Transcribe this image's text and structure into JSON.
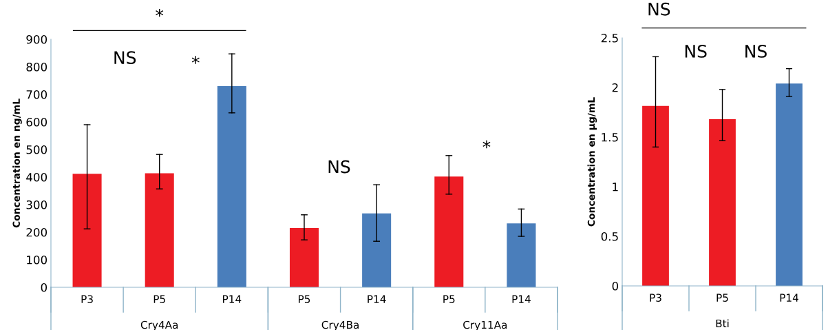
{
  "chart_data": [
    {
      "type": "bar",
      "ylabel": "Concentration en ng/mL",
      "categories": [
        "P3",
        "P5",
        "P14",
        "P5",
        "P14",
        "P5",
        "P14"
      ],
      "values": [
        412,
        414,
        730,
        215,
        268,
        402,
        232
      ],
      "colors": [
        "#ed1c24",
        "#ed1c24",
        "#4a7ebb",
        "#ed1c24",
        "#4a7ebb",
        "#ed1c24",
        "#4a7ebb"
      ],
      "errors": [
        [
          212,
          590
        ],
        [
          357,
          482
        ],
        [
          633,
          847
        ],
        [
          172,
          263
        ],
        [
          167,
          372
        ],
        [
          338,
          478
        ],
        [
          185,
          284
        ]
      ],
      "ylim": [
        0,
        900
      ],
      "yticks": [
        0,
        100,
        200,
        300,
        400,
        500,
        600,
        700,
        800,
        900
      ],
      "grid": false,
      "annotations": [
        "*",
        "NS",
        "*",
        "NS",
        "*",
        "Cry4Aa",
        "Cry4Ba",
        "Cry11Aa"
      ]
    },
    {
      "type": "bar",
      "ylabel": "Concentration en µg/mL",
      "categories": [
        "P3",
        "P5",
        "P14"
      ],
      "values": [
        1.815,
        1.68,
        2.04
      ],
      "colors": [
        "#ed1c24",
        "#ed1c24",
        "#4a7ebb"
      ],
      "errors": [
        [
          1.4,
          2.31
        ],
        [
          1.465,
          1.98
        ],
        [
          1.91,
          2.19
        ]
      ],
      "ylim": [
        0,
        2.5
      ],
      "yticks": [
        0,
        0.5,
        1,
        1.5,
        2,
        2.5
      ],
      "grid": false,
      "annotations": [
        "NS",
        "NS",
        "NS",
        "Bti"
      ]
    }
  ]
}
